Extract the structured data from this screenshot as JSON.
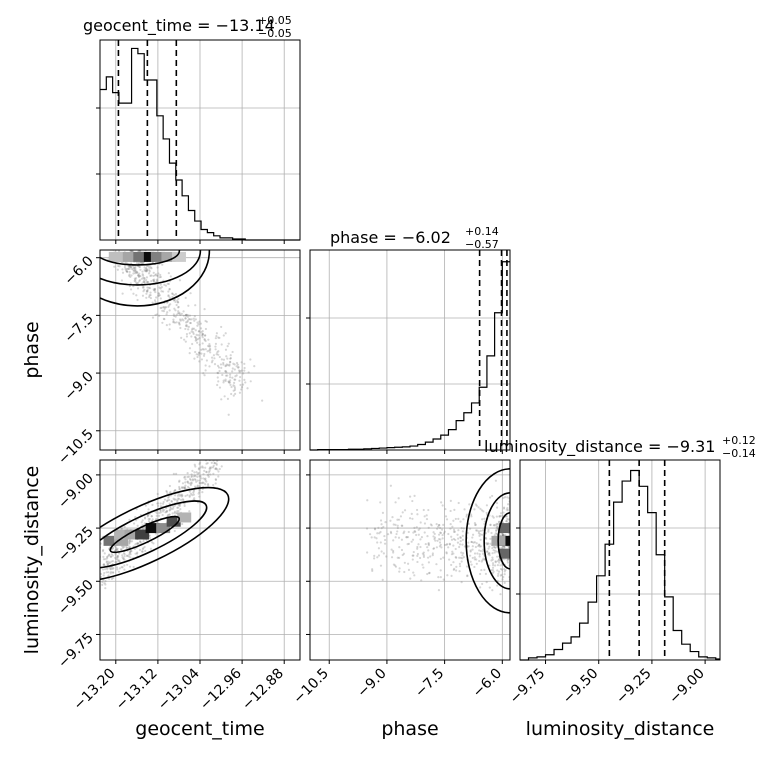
{
  "chart_data": {
    "type": "corner",
    "parameters": [
      {
        "key": "geocent_time",
        "label": "geocent_time",
        "title_main": "geocent_time = −13.14",
        "title_sup": "+0.05",
        "title_sub": "−0.05",
        "range": [
          -13.23,
          -12.85
        ],
        "ticks": [
          -13.2,
          -13.12,
          -13.04,
          -12.96,
          -12.88
        ],
        "tick_labels": [
          "−13.20",
          "−13.12",
          "−13.04",
          "−12.96",
          "−12.88"
        ],
        "quantiles": [
          -13.195,
          -13.14,
          -13.085
        ],
        "hist_edges": [
          -13.23,
          -13.218,
          -13.206,
          -13.194,
          -13.182,
          -13.17,
          -13.158,
          -13.146,
          -13.134,
          -13.122,
          -13.11,
          -13.098,
          -13.086,
          -13.074,
          -13.062,
          -13.05,
          -13.038,
          -13.026,
          -13.014,
          -13.002,
          -12.99,
          -12.978,
          -12.966,
          -12.954,
          -12.942,
          -12.93,
          -12.918,
          -12.906,
          -12.894,
          -12.882,
          -12.87,
          -12.858,
          -12.85
        ],
        "hist_counts": [
          143,
          155,
          140,
          130,
          130,
          182,
          177,
          152,
          152,
          118,
          96,
          73,
          57,
          42,
          28,
          18,
          10,
          7,
          4,
          2,
          2,
          1,
          1,
          0,
          0,
          0,
          0,
          0,
          0,
          0,
          0,
          0
        ],
        "hist_ylim": [
          0,
          190
        ]
      },
      {
        "key": "phase",
        "label": "phase",
        "title_main": "phase = −6.02",
        "title_sup": "+0.14",
        "title_sub": "−0.57",
        "range": [
          -11.0,
          -5.8
        ],
        "ticks": [
          -10.5,
          -9.0,
          -7.5,
          -6.0
        ],
        "tick_labels": [
          "−10.5",
          "−9.0",
          "−7.5",
          "−6.0"
        ],
        "quantiles": [
          -6.59,
          -6.02,
          -5.88
        ],
        "hist_edges": [
          -11.0,
          -10.8,
          -10.6,
          -10.4,
          -10.2,
          -10.0,
          -9.8,
          -9.6,
          -9.4,
          -9.2,
          -9.0,
          -8.8,
          -8.6,
          -8.4,
          -8.2,
          -8.0,
          -7.8,
          -7.6,
          -7.4,
          -7.2,
          -7.0,
          -6.8,
          -6.6,
          -6.4,
          -6.2,
          -6.0,
          -5.8
        ],
        "hist_counts": [
          0,
          1,
          1,
          1,
          1,
          2,
          2,
          3,
          4,
          5,
          6,
          7,
          8,
          10,
          14,
          20,
          28,
          38,
          52,
          75,
          95,
          120,
          160,
          240,
          350,
          480
        ],
        "hist_ylim": [
          0,
          510
        ]
      },
      {
        "key": "luminosity_distance",
        "label": "luminosity_distance",
        "title_main": "luminosity_distance = −9.31",
        "title_sup": "+0.12",
        "title_sub": "−0.14",
        "range": [
          -9.87,
          -8.93
        ],
        "ticks": [
          -9.75,
          -9.5,
          -9.25,
          -9.0
        ],
        "tick_labels": [
          "−9.75",
          "−9.50",
          "−9.25",
          "−9.00"
        ],
        "quantiles": [
          -9.45,
          -9.31,
          -9.19
        ],
        "hist_edges": [
          -9.87,
          -9.83,
          -9.79,
          -9.75,
          -9.71,
          -9.67,
          -9.63,
          -9.59,
          -9.55,
          -9.51,
          -9.47,
          -9.43,
          -9.39,
          -9.35,
          -9.31,
          -9.27,
          -9.23,
          -9.19,
          -9.15,
          -9.11,
          -9.07,
          -9.03,
          -8.99,
          -8.95,
          -8.93
        ],
        "hist_counts": [
          0,
          2,
          3,
          5,
          10,
          16,
          22,
          35,
          55,
          80,
          110,
          150,
          170,
          180,
          165,
          140,
          100,
          60,
          28,
          15,
          8,
          3,
          2,
          1
        ],
        "hist_ylim": [
          0,
          190
        ]
      }
    ],
    "pairs": [
      {
        "x": "geocent_time",
        "y": "phase",
        "scatter_spread": "points scattered down and right from (−13.15, −6.2) to (−12.98, −9.5)",
        "contour_peak": [
          -13.14,
          -5.98
        ],
        "density_cells": [
          {
            "x": -13.14,
            "y": -5.98,
            "level": 0.95
          },
          {
            "x": -13.16,
            "y": -5.98,
            "level": 0.55
          },
          {
            "x": -13.12,
            "y": -5.98,
            "level": 0.5
          },
          {
            "x": -13.18,
            "y": -5.98,
            "level": 0.35
          },
          {
            "x": -13.1,
            "y": -5.98,
            "level": 0.35
          },
          {
            "x": -13.2,
            "y": -5.98,
            "level": 0.25
          },
          {
            "x": -13.08,
            "y": -5.98,
            "level": 0.2
          }
        ]
      },
      {
        "x": "geocent_time",
        "y": "luminosity_distance",
        "scatter_spread": "diagonal band from (−13.22, −9.45) to (−13.02, −8.96)",
        "density_cells": [
          {
            "x": -13.21,
            "y": -9.31,
            "level": 0.55
          },
          {
            "x": -13.19,
            "y": -9.31,
            "level": 0.35
          },
          {
            "x": -13.19,
            "y": -9.28,
            "level": 0.3
          },
          {
            "x": -13.17,
            "y": -9.28,
            "level": 0.35
          },
          {
            "x": -13.15,
            "y": -9.28,
            "level": 0.75
          },
          {
            "x": -13.13,
            "y": -9.25,
            "level": 0.95
          },
          {
            "x": -13.11,
            "y": -9.25,
            "level": 0.45
          },
          {
            "x": -13.09,
            "y": -9.22,
            "level": 0.7
          },
          {
            "x": -13.07,
            "y": -9.2,
            "level": 0.3
          }
        ]
      },
      {
        "x": "phase",
        "y": "luminosity_distance",
        "scatter_spread": "cloud concentrated near phase −6.0, spreading left to −9.5",
        "density_cells": [
          {
            "x": -5.9,
            "y": -9.31,
            "level": 0.95
          },
          {
            "x": -5.9,
            "y": -9.25,
            "level": 0.6
          },
          {
            "x": -5.9,
            "y": -9.37,
            "level": 0.6
          },
          {
            "x": -6.1,
            "y": -9.31,
            "level": 0.35
          }
        ]
      }
    ],
    "quantile_style": "dashed",
    "grid": true
  }
}
